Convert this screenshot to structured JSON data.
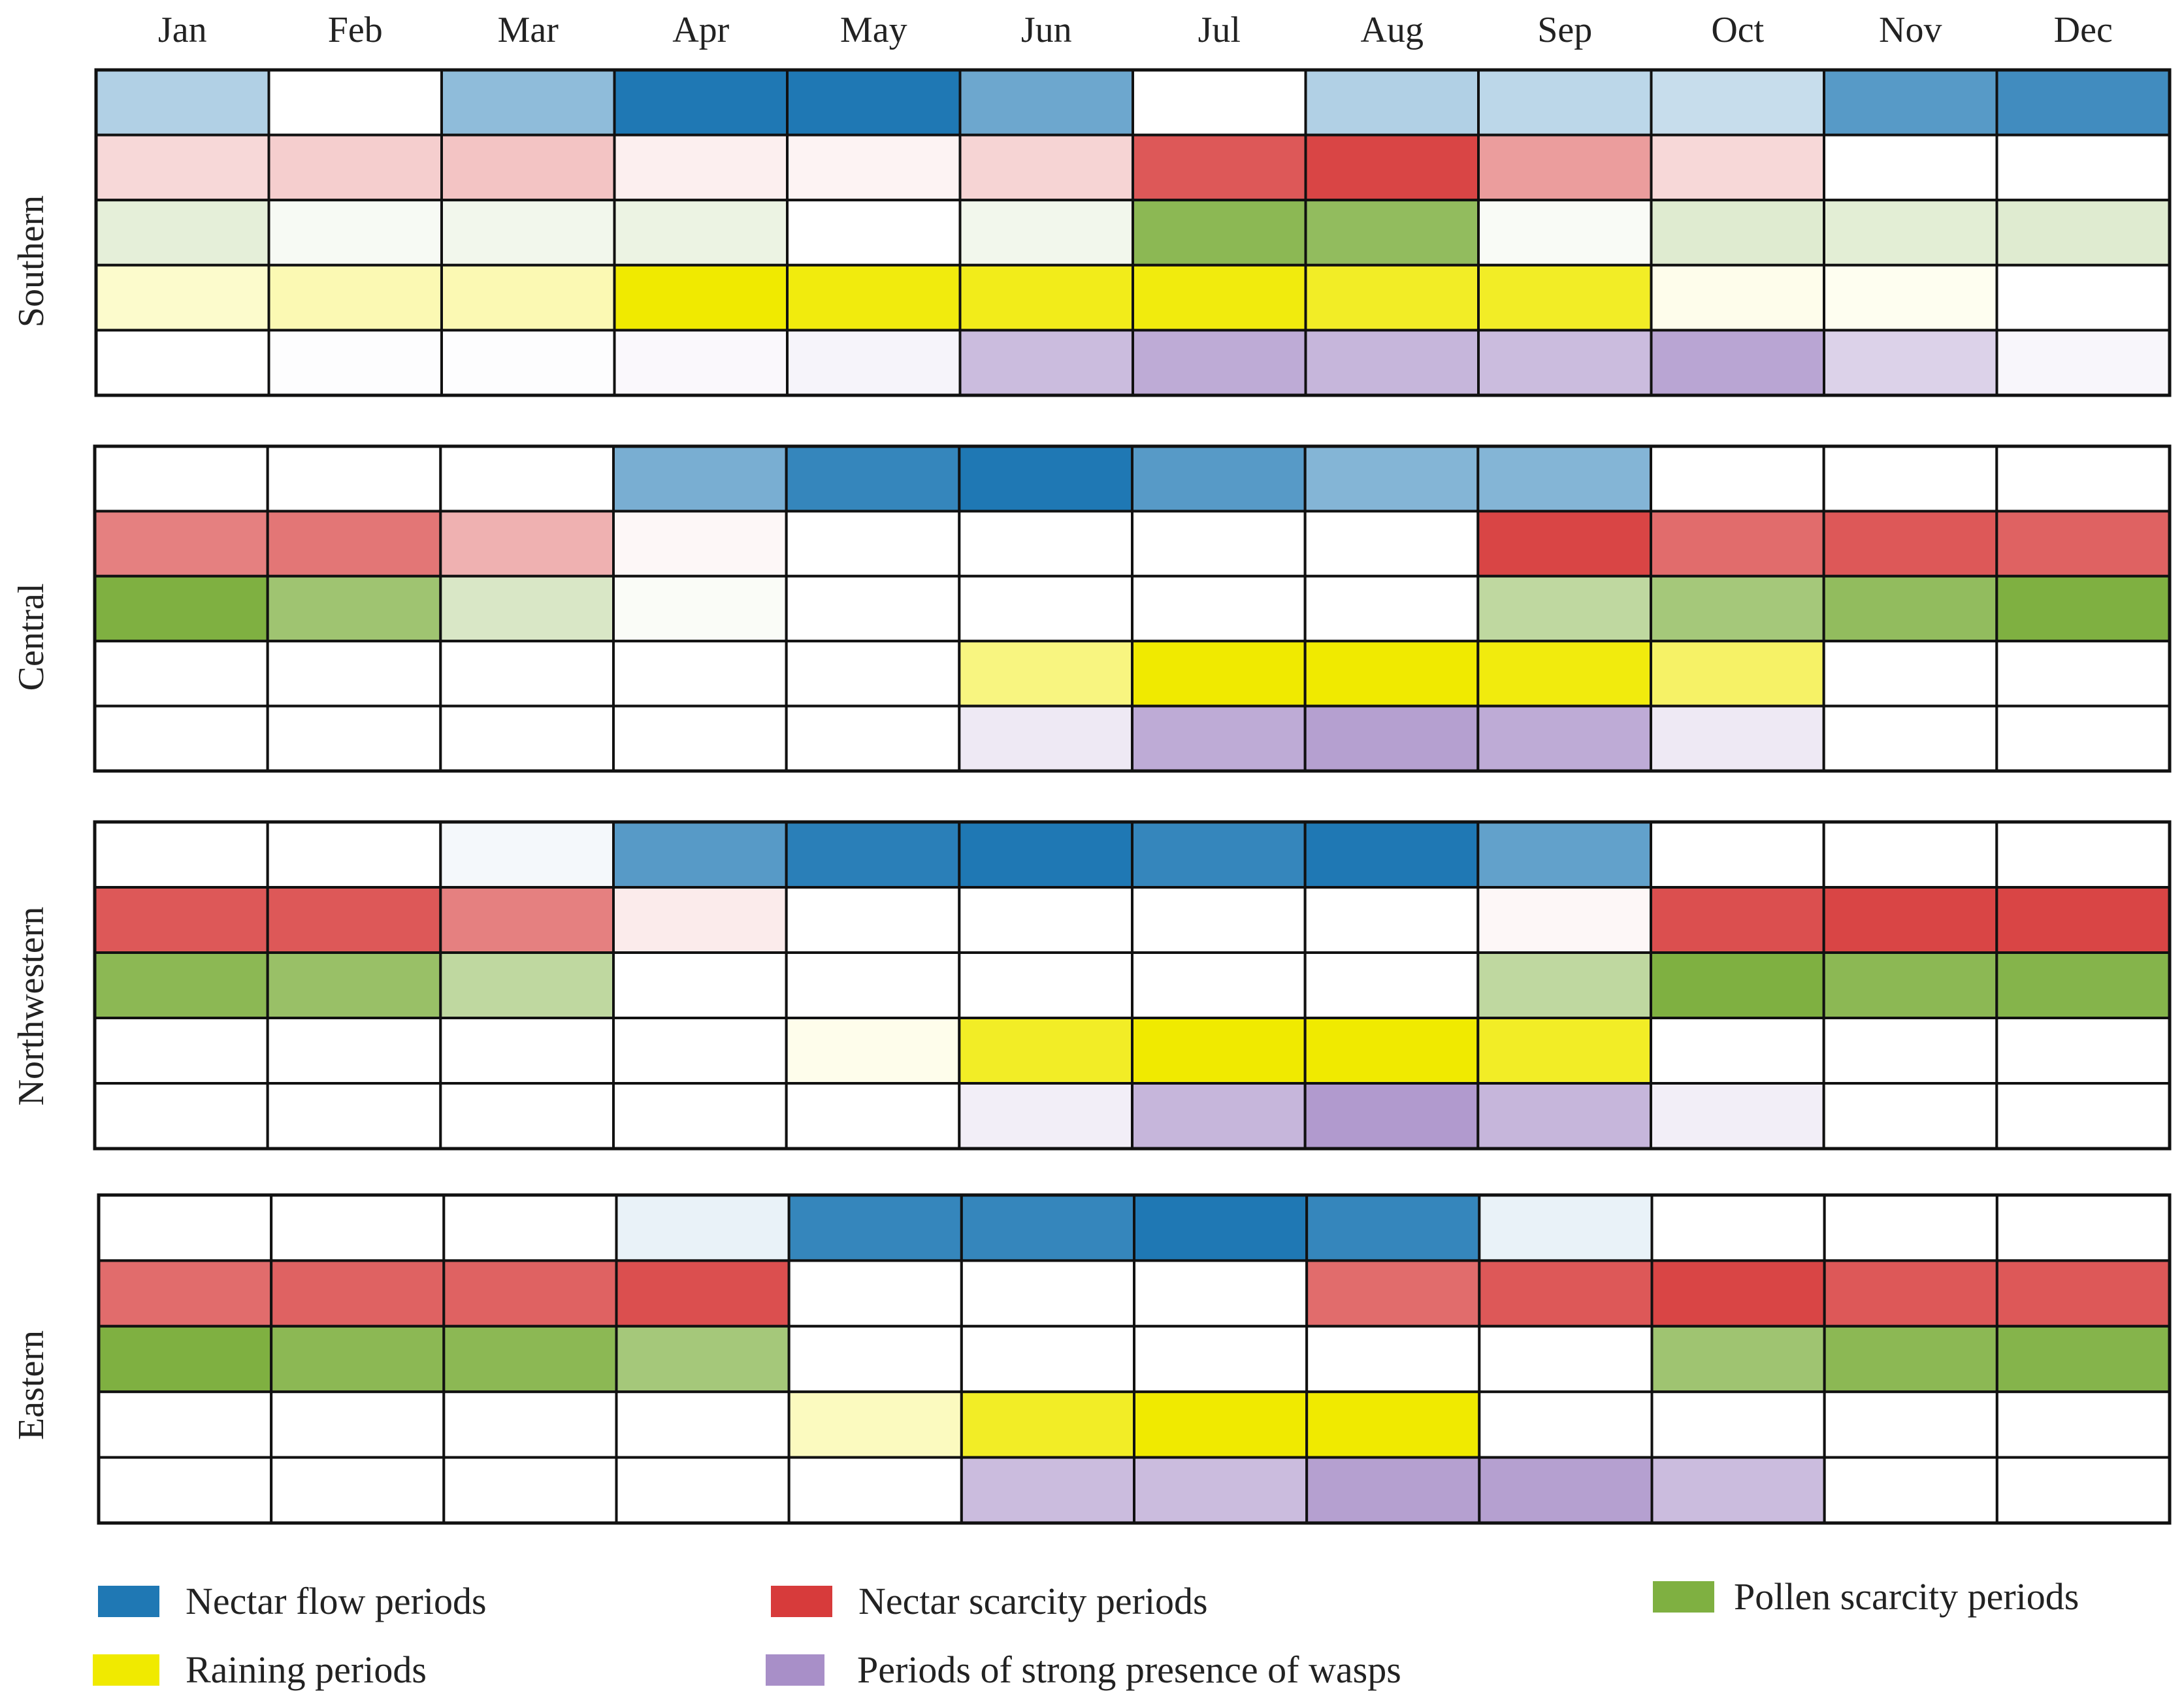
{
  "chart_data": {
    "type": "heatmap",
    "title": "",
    "months": [
      "Jan",
      "Feb",
      "Mar",
      "Apr",
      "May",
      "Jun",
      "Jul",
      "Aug",
      "Sep",
      "Oct",
      "Nov",
      "Dec"
    ],
    "row_categories": [
      "Nectar flow periods",
      "Nectar scarcity periods",
      "Pollen scarcity periods",
      "Raining periods",
      "Periods of strong presence of wasps"
    ],
    "colors": {
      "nectar_flow": "#1f78b4",
      "nectar_scarcity": "#d73b3b",
      "pollen_scarcity": "#7fb041",
      "raining": "#f0ea00",
      "wasps": "#a88fc8"
    },
    "intensity_scale": "0 = absent (white), 1 = strongest",
    "regions": [
      {
        "name": "Southern",
        "rows": [
          {
            "category": "nectar_flow",
            "values": [
              0.35,
              0.0,
              0.5,
              1.0,
              1.0,
              0.65,
              0.0,
              0.35,
              0.3,
              0.25,
              0.75,
              0.85
            ]
          },
          {
            "category": "nectar_scarcity",
            "values": [
              0.2,
              0.25,
              0.3,
              0.08,
              0.06,
              0.22,
              0.85,
              0.95,
              0.5,
              0.2,
              0.0,
              0.0
            ]
          },
          {
            "category": "pollen_scarcity",
            "values": [
              0.2,
              0.06,
              0.1,
              0.15,
              0.0,
              0.1,
              0.9,
              0.85,
              0.05,
              0.25,
              0.22,
              0.25
            ]
          },
          {
            "category": "raining",
            "values": [
              0.2,
              0.3,
              0.3,
              1.0,
              0.95,
              0.9,
              0.95,
              0.85,
              0.85,
              0.08,
              0.06,
              0.0
            ]
          },
          {
            "category": "wasps",
            "values": [
              0.0,
              0.02,
              0.02,
              0.06,
              0.1,
              0.6,
              0.75,
              0.65,
              0.6,
              0.8,
              0.4,
              0.08
            ]
          }
        ]
      },
      {
        "name": "Central",
        "rows": [
          {
            "category": "nectar_flow",
            "values": [
              0.0,
              0.0,
              0.0,
              0.6,
              0.9,
              1.0,
              0.75,
              0.55,
              0.55,
              0.0,
              0.0,
              0.0
            ]
          },
          {
            "category": "nectar_scarcity",
            "values": [
              0.65,
              0.7,
              0.4,
              0.04,
              0.0,
              0.0,
              0.0,
              0.0,
              0.95,
              0.75,
              0.85,
              0.8
            ]
          },
          {
            "category": "pollen_scarcity",
            "values": [
              1.0,
              0.75,
              0.3,
              0.04,
              0.0,
              0.0,
              0.0,
              0.0,
              0.5,
              0.7,
              0.85,
              1.0
            ]
          },
          {
            "category": "raining",
            "values": [
              0.0,
              0.0,
              0.0,
              0.0,
              0.0,
              0.5,
              1.0,
              1.0,
              0.95,
              0.6,
              0.0,
              0.0
            ]
          },
          {
            "category": "wasps",
            "values": [
              0.0,
              0.0,
              0.0,
              0.0,
              0.0,
              0.2,
              0.75,
              0.85,
              0.75,
              0.2,
              0.0,
              0.0
            ]
          }
        ]
      },
      {
        "name": "Northwestern",
        "rows": [
          {
            "category": "nectar_flow",
            "values": [
              0.0,
              0.0,
              0.05,
              0.75,
              0.95,
              1.0,
              0.9,
              1.0,
              0.7,
              0.0,
              0.0,
              0.0
            ]
          },
          {
            "category": "nectar_scarcity",
            "values": [
              0.85,
              0.85,
              0.65,
              0.1,
              0.0,
              0.0,
              0.0,
              0.0,
              0.04,
              0.9,
              0.95,
              0.95
            ]
          },
          {
            "category": "pollen_scarcity",
            "values": [
              0.9,
              0.8,
              0.5,
              0.0,
              0.0,
              0.0,
              0.0,
              0.0,
              0.5,
              1.0,
              0.9,
              0.95
            ]
          },
          {
            "category": "raining",
            "values": [
              0.0,
              0.0,
              0.0,
              0.0,
              0.08,
              0.85,
              1.0,
              1.0,
              0.85,
              0.0,
              0.0,
              0.0
            ]
          },
          {
            "category": "wasps",
            "values": [
              0.0,
              0.0,
              0.0,
              0.0,
              0.0,
              0.15,
              0.65,
              0.9,
              0.65,
              0.15,
              0.0,
              0.0
            ]
          }
        ]
      },
      {
        "name": "Eastern",
        "rows": [
          {
            "category": "nectar_flow",
            "values": [
              0.0,
              0.0,
              0.0,
              0.1,
              0.9,
              0.9,
              1.0,
              0.9,
              0.1,
              0.0,
              0.0,
              0.0
            ]
          },
          {
            "category": "nectar_scarcity",
            "values": [
              0.75,
              0.8,
              0.8,
              0.9,
              0.0,
              0.0,
              0.0,
              0.75,
              0.85,
              0.95,
              0.85,
              0.85
            ]
          },
          {
            "category": "pollen_scarcity",
            "values": [
              1.0,
              0.9,
              0.9,
              0.7,
              0.0,
              0.0,
              0.0,
              0.0,
              0.0,
              0.75,
              0.9,
              0.95
            ]
          },
          {
            "category": "raining",
            "values": [
              0.0,
              0.0,
              0.0,
              0.0,
              0.25,
              0.85,
              1.0,
              1.0,
              0.0,
              0.0,
              0.0,
              0.0
            ]
          },
          {
            "category": "wasps",
            "values": [
              0.0,
              0.0,
              0.0,
              0.0,
              0.0,
              0.6,
              0.6,
              0.85,
              0.85,
              0.6,
              0.0,
              0.0
            ]
          }
        ]
      }
    ],
    "legend": [
      {
        "label": "Nectar flow periods",
        "category": "nectar_flow"
      },
      {
        "label": "Nectar scarcity periods",
        "category": "nectar_scarcity"
      },
      {
        "label": "Pollen scarcity periods",
        "category": "pollen_scarcity"
      },
      {
        "label": "Raining periods",
        "category": "raining"
      },
      {
        "label": "Periods of strong presence of wasps",
        "category": "wasps"
      }
    ]
  }
}
